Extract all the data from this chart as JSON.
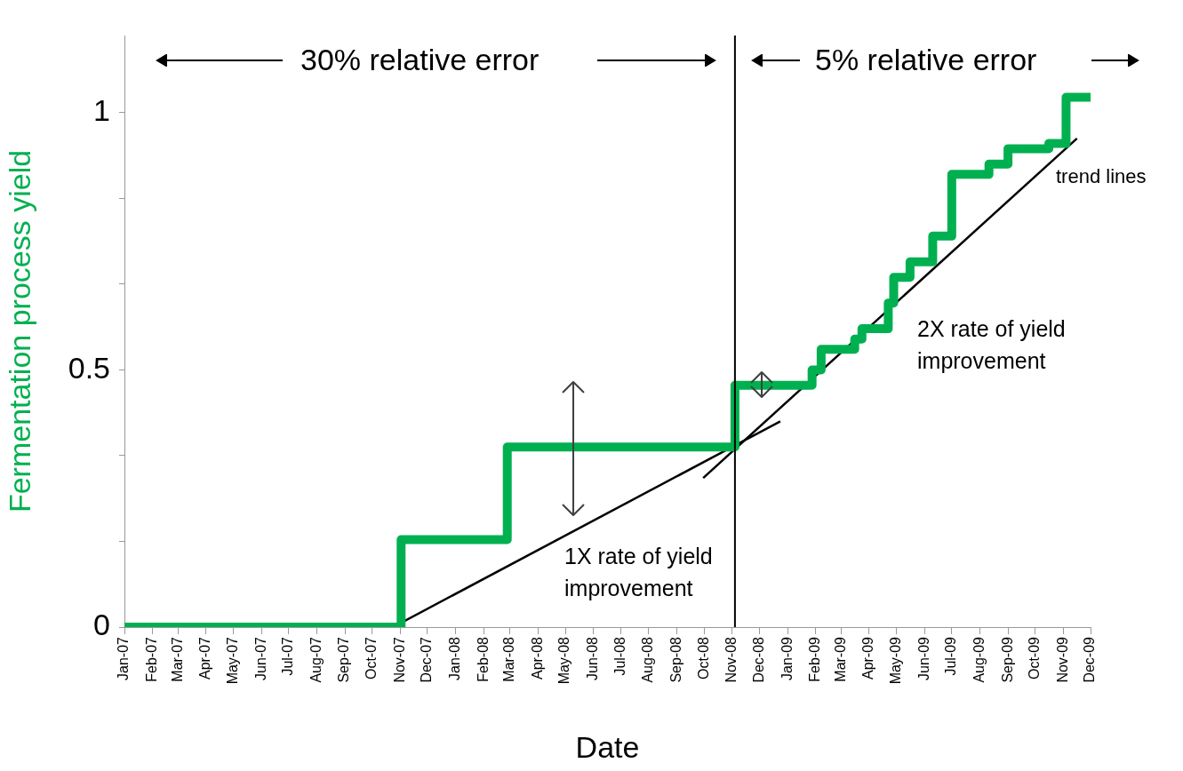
{
  "chart_data": {
    "type": "step",
    "xlabel": "Date",
    "ylabel": "Fermentation process yield",
    "xlim": [
      "2007-01",
      "2009-12"
    ],
    "xticks": [
      {
        "value": "2007-01",
        "label": "Jan-07"
      },
      {
        "value": "2007-02",
        "label": "Feb-07"
      },
      {
        "value": "2007-03",
        "label": "Mar-07"
      },
      {
        "value": "2007-04",
        "label": "Apr-07"
      },
      {
        "value": "2007-05",
        "label": "May-07"
      },
      {
        "value": "2007-06",
        "label": "Jun-07"
      },
      {
        "value": "2007-07",
        "label": "Jul-07"
      },
      {
        "value": "2007-08",
        "label": "Aug-07"
      },
      {
        "value": "2007-09",
        "label": "Sep-07"
      },
      {
        "value": "2007-10",
        "label": "Oct-07"
      },
      {
        "value": "2007-11",
        "label": "Nov-07"
      },
      {
        "value": "2007-12",
        "label": "Dec-07"
      },
      {
        "value": "2008-01",
        "label": "Jan-08"
      },
      {
        "value": "2008-02",
        "label": "Feb-08"
      },
      {
        "value": "2008-03",
        "label": "Mar-08"
      },
      {
        "value": "2008-04",
        "label": "Apr-08"
      },
      {
        "value": "2008-05",
        "label": "May-08"
      },
      {
        "value": "2008-06",
        "label": "Jun-08"
      },
      {
        "value": "2008-07",
        "label": "Jul-08"
      },
      {
        "value": "2008-08",
        "label": "Aug-08"
      },
      {
        "value": "2008-09",
        "label": "Sep-08"
      },
      {
        "value": "2008-10",
        "label": "Oct-08"
      },
      {
        "value": "2008-11",
        "label": "Nov-08"
      },
      {
        "value": "2008-12",
        "label": "Dec-08"
      },
      {
        "value": "2009-01",
        "label": "Jan-09"
      },
      {
        "value": "2009-02",
        "label": "Feb-09"
      },
      {
        "value": "2009-03",
        "label": "Mar-09"
      },
      {
        "value": "2009-04",
        "label": "Apr-09"
      },
      {
        "value": "2009-05",
        "label": "May-09"
      },
      {
        "value": "2009-06",
        "label": "Jun-09"
      },
      {
        "value": "2009-07",
        "label": "Jul-09"
      },
      {
        "value": "2009-08",
        "label": "Aug-09"
      },
      {
        "value": "2009-09",
        "label": "Sep-09"
      },
      {
        "value": "2009-10",
        "label": "Oct-09"
      },
      {
        "value": "2009-11",
        "label": "Nov-09"
      },
      {
        "value": "2009-12",
        "label": "Dec-09"
      }
    ],
    "ylim": [
      0,
      1.15
    ],
    "yticks": [
      0,
      {
        "value": 0.1667,
        "label": null
      },
      {
        "value": 0.3333,
        "label": null
      },
      0.5,
      {
        "value": 0.6667,
        "label": null
      },
      {
        "value": 0.8333,
        "label": null
      },
      1
    ],
    "grid": false,
    "legend": false,
    "series": [
      {
        "color": "#00b050",
        "x": [
          "2007-01",
          "2007-11-02",
          "2008-02-27",
          "2008-11-04",
          "2009-01-28",
          "2009-02-07",
          "2009-03-16",
          "2009-03-24",
          "2009-04-22",
          "2009-04-28",
          "2009-05-16",
          "2009-06-10",
          "2009-07-01",
          "2009-08-11",
          "2009-09-01",
          "2009-10-16",
          "2009-11-04",
          "2009-12"
        ],
        "values": [
          0,
          0.17,
          0.35,
          0.47,
          0.5,
          0.54,
          0.56,
          0.58,
          0.63,
          0.68,
          0.71,
          0.76,
          0.88,
          0.9,
          0.93,
          0.94,
          1.03,
          1.03
        ]
      },
      {
        "type": "line",
        "color": "#000000",
        "x": [
          "2007-10-24",
          "2008-12-24"
        ],
        "values": [
          0,
          0.4
        ]
      },
      {
        "type": "line",
        "color": "#000000",
        "x": [
          "2008-09-30",
          "2009-11-16"
        ],
        "values": [
          0.29,
          0.95
        ]
      }
    ],
    "ref_lines": [
      {
        "axis": "x",
        "value": "2008-11-04",
        "color": "#000000"
      }
    ],
    "annotations": [
      "30% relative error",
      "5% relative error",
      "1X rate of yield improvement",
      "2X rate of yield improvement",
      "trend lines"
    ]
  }
}
